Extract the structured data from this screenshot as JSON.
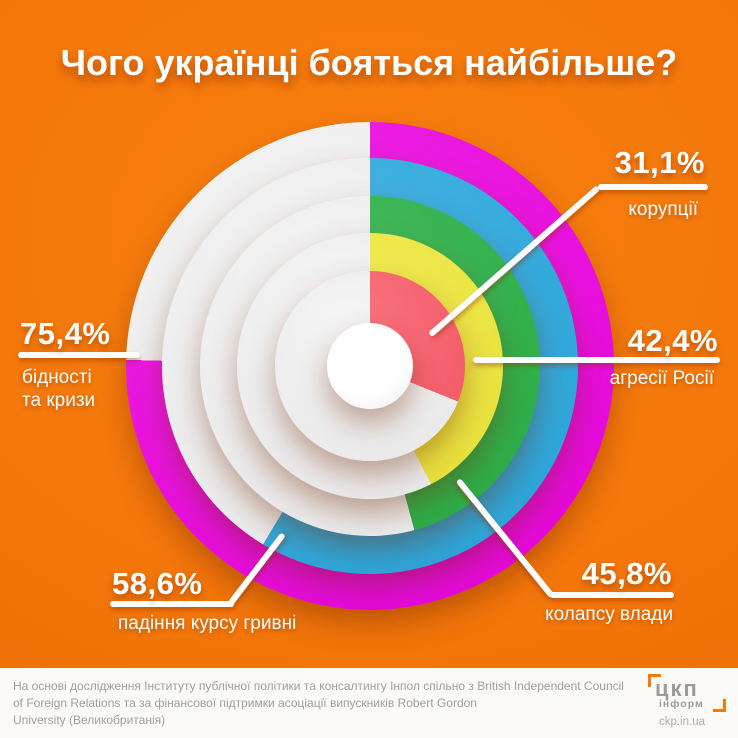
{
  "title": "Чого українці бояться найбільше?",
  "chart_data": {
    "type": "pie",
    "variant": "concentric-donut-rings",
    "title": "Чого українці бояться найбільше?",
    "start_angle_deg": 0,
    "direction": "clockwise",
    "categories": [
      "бідності та кризи",
      "падіння курсу гривні",
      "колапсу влади",
      "агресії Росії",
      "корупції"
    ],
    "values": [
      75.4,
      58.6,
      45.8,
      42.4,
      31.1
    ],
    "rings": [
      {
        "label": "бідності та кризи",
        "value": 75.4,
        "color": "#ee00e2"
      },
      {
        "label": "падіння курсу гривні",
        "value": 58.6,
        "color": "#27a9e0"
      },
      {
        "label": "колапсу влади",
        "value": 45.8,
        "color": "#27b143"
      },
      {
        "label": "агресії Росії",
        "value": 42.4,
        "color": "#f1ea39"
      },
      {
        "label": "корупції",
        "value": 31.1,
        "color": "#fb5a67"
      }
    ],
    "remainder_color": "#f3f3f3",
    "legend_position": "callout-labels"
  },
  "callouts": {
    "corruption": {
      "value": "31,1%",
      "caption": "корупції"
    },
    "aggression": {
      "value": "42,4%",
      "caption": "агресії Росії"
    },
    "poverty": {
      "value": "75,4%",
      "caption_lines": [
        "бідності",
        "та кризи"
      ]
    },
    "hryvnia": {
      "value": "58,6%",
      "caption": "падіння курсу гривні"
    },
    "collapse": {
      "value": "45,8%",
      "caption": "колапсу влади"
    }
  },
  "footer": {
    "lines": [
      "На основі дослідження Інституту публічної політики та консалтингу Інпол спільно з British Independent Council",
      "of Foreign Relations та за фінансової підтримки асоціації випускників Robert Gordon",
      "University (Великобританія)"
    ]
  },
  "logo": {
    "name_top": "цкп",
    "name_bottom": "інформ",
    "site": "ckp.in.ua"
  },
  "colors": {
    "background": "#f3760a",
    "title_text": "#ffffff",
    "callout_line": "#ffffff",
    "footer_bg": "#fbfaf7",
    "footer_text": "#9e9e9e",
    "logo_text": "#9b9b9b",
    "logo_accent": "#f4780a",
    "logo_site_text": "#b3aca4"
  }
}
